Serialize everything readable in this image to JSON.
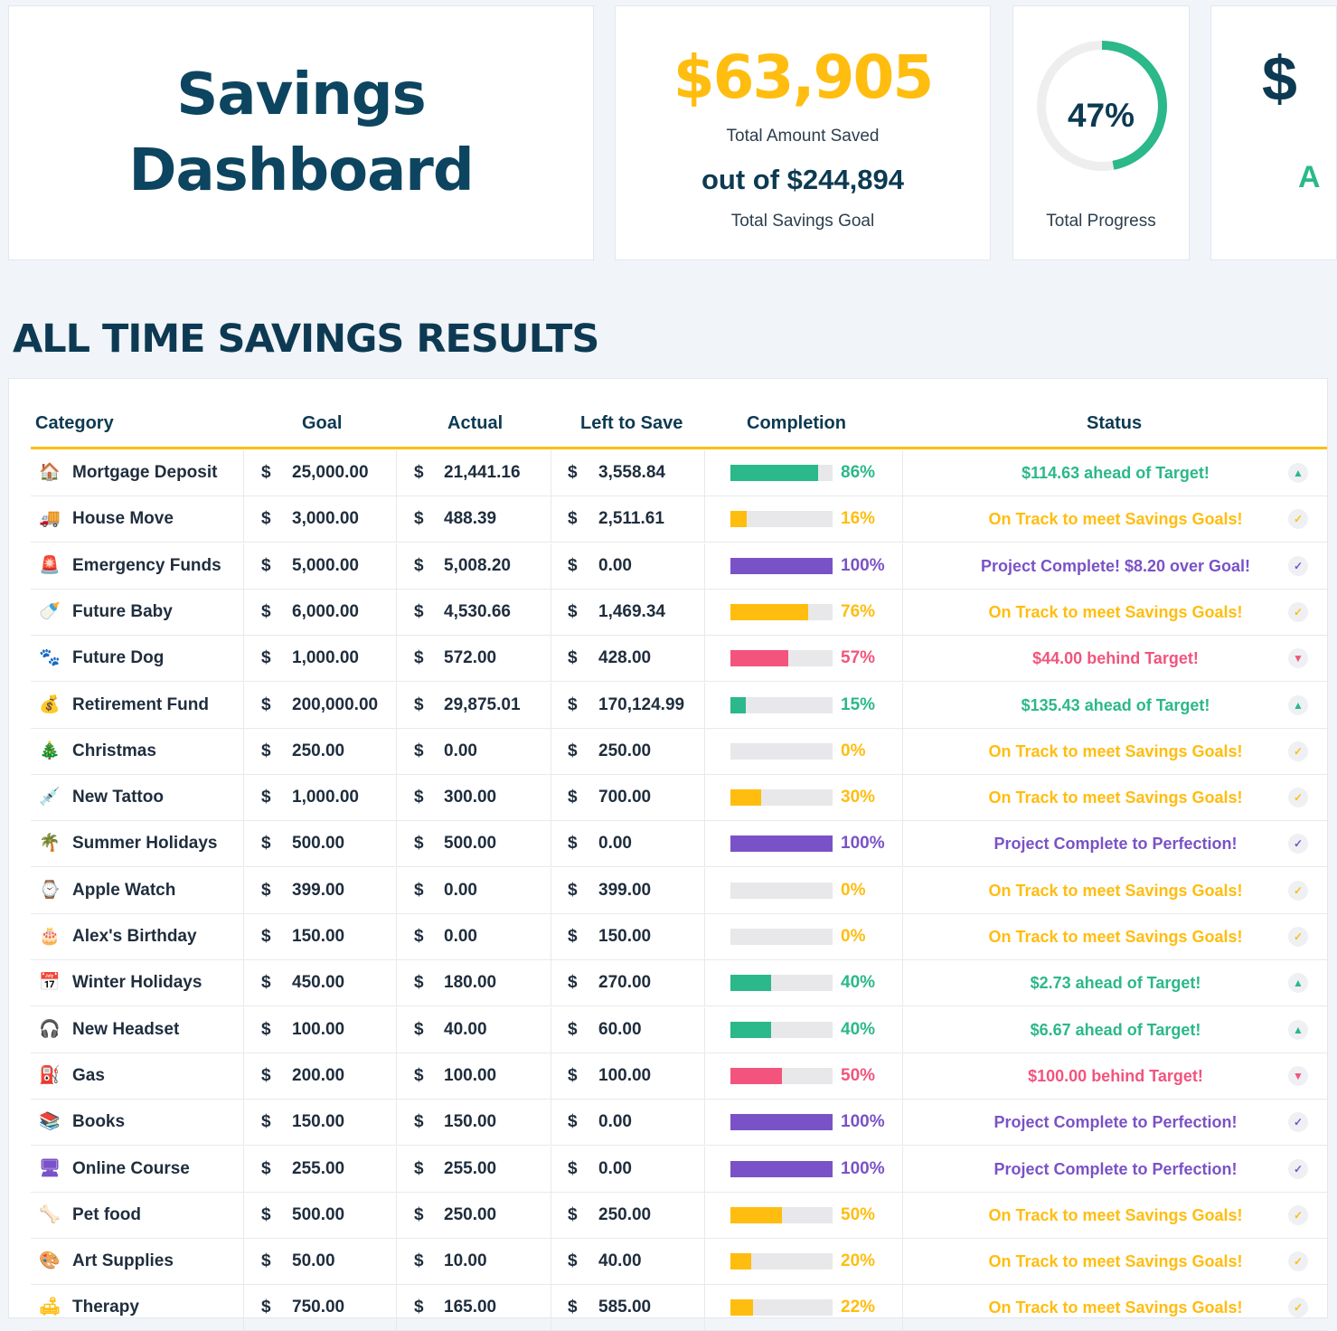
{
  "header": {
    "title_line1": "Savings",
    "title_line2": "Dashboard",
    "total_saved": "$63,905",
    "total_saved_label": "Total Amount Saved",
    "goal": "out of $244,894",
    "goal_label": "Total Savings Goal",
    "progress_pct": "47%",
    "progress_value": 0.47,
    "progress_label": "Total Progress",
    "partial_card_value": "$",
    "partial_card_label": "A"
  },
  "section_title": "ALL TIME SAVINGS RESULTS",
  "columns": {
    "category": "Category",
    "goal": "Goal",
    "actual": "Actual",
    "left": "Left to Save",
    "completion": "Completion",
    "status": "Status"
  },
  "colors": {
    "ahead": "#2bb88a",
    "ontrack": "#ffbd0f",
    "complete": "#7a52c7",
    "behind": "#f2547d",
    "accent": "#ffbd0f",
    "navy": "#0d3a52"
  },
  "rows": [
    {
      "icon": "house-icon",
      "glyph": "🏠",
      "category": "Mortgage Deposit",
      "currency": "$",
      "goal": "25,000.00",
      "actual": "21,441.16",
      "left": "3,558.84",
      "pct_text": "86%",
      "pct": 0.86,
      "status": "$114.63 ahead of Target!",
      "kind": "ahead"
    },
    {
      "icon": "truck-icon",
      "glyph": "🚚",
      "category": "House Move",
      "currency": "$",
      "goal": "3,000.00",
      "actual": "488.39",
      "left": "2,511.61",
      "pct_text": "16%",
      "pct": 0.16,
      "status": "On Track to meet Savings Goals!",
      "kind": "ontrack"
    },
    {
      "icon": "siren-icon",
      "glyph": "🚨",
      "category": "Emergency Funds",
      "currency": "$",
      "goal": "5,000.00",
      "actual": "5,008.20",
      "left": "0.00",
      "pct_text": "100%",
      "pct": 1.0,
      "status": "Project Complete! $8.20 over Goal!",
      "kind": "complete"
    },
    {
      "icon": "baby-bottle-icon",
      "glyph": "🍼",
      "category": "Future Baby",
      "currency": "$",
      "goal": "6,000.00",
      "actual": "4,530.66",
      "left": "1,469.34",
      "pct_text": "76%",
      "pct": 0.76,
      "status": "On Track to meet Savings Goals!",
      "kind": "ontrack"
    },
    {
      "icon": "paw-icon",
      "glyph": "🐾",
      "category": "Future Dog",
      "currency": "$",
      "goal": "1,000.00",
      "actual": "572.00",
      "left": "428.00",
      "pct_text": "57%",
      "pct": 0.57,
      "status": "$44.00 behind Target!",
      "kind": "behind"
    },
    {
      "icon": "money-bag-icon",
      "glyph": "💰",
      "category": "Retirement Fund",
      "currency": "$",
      "goal": "200,000.00",
      "actual": "29,875.01",
      "left": "170,124.99",
      "pct_text": "15%",
      "pct": 0.15,
      "status": "$135.43 ahead of Target!",
      "kind": "ahead"
    },
    {
      "icon": "christmas-tree-icon",
      "glyph": "🎄",
      "category": "Christmas",
      "currency": "$",
      "goal": "250.00",
      "actual": "0.00",
      "left": "250.00",
      "pct_text": "0%",
      "pct": 0.0,
      "status": "On Track to meet Savings Goals!",
      "kind": "ontrack"
    },
    {
      "icon": "tattoo-needle-icon",
      "glyph": "💉",
      "category": "New Tattoo",
      "currency": "$",
      "goal": "1,000.00",
      "actual": "300.00",
      "left": "700.00",
      "pct_text": "30%",
      "pct": 0.3,
      "status": "On Track to meet Savings Goals!",
      "kind": "ontrack"
    },
    {
      "icon": "palm-tree-icon",
      "glyph": "🌴",
      "category": "Summer Holidays",
      "currency": "$",
      "goal": "500.00",
      "actual": "500.00",
      "left": "0.00",
      "pct_text": "100%",
      "pct": 1.0,
      "status": "Project Complete to Perfection!",
      "kind": "complete"
    },
    {
      "icon": "watch-icon",
      "glyph": "⌚",
      "category": "Apple Watch",
      "currency": "$",
      "goal": "399.00",
      "actual": "0.00",
      "left": "399.00",
      "pct_text": "0%",
      "pct": 0.0,
      "status": "On Track to meet Savings Goals!",
      "kind": "ontrack"
    },
    {
      "icon": "birthday-cake-icon",
      "glyph": "🎂",
      "category": "Alex's Birthday",
      "currency": "$",
      "goal": "150.00",
      "actual": "0.00",
      "left": "150.00",
      "pct_text": "0%",
      "pct": 0.0,
      "status": "On Track to meet Savings Goals!",
      "kind": "ontrack"
    },
    {
      "icon": "calendar-snow-icon",
      "glyph": "📅",
      "category": "Winter Holidays",
      "currency": "$",
      "goal": "450.00",
      "actual": "180.00",
      "left": "270.00",
      "pct_text": "40%",
      "pct": 0.4,
      "status": "$2.73 ahead of Target!",
      "kind": "ahead"
    },
    {
      "icon": "headphones-icon",
      "glyph": "🎧",
      "category": "New Headset",
      "currency": "$",
      "goal": "100.00",
      "actual": "40.00",
      "left": "60.00",
      "pct_text": "40%",
      "pct": 0.4,
      "status": "$6.67 ahead of Target!",
      "kind": "ahead"
    },
    {
      "icon": "fuel-pump-icon",
      "glyph": "⛽",
      "category": "Gas",
      "currency": "$",
      "goal": "200.00",
      "actual": "100.00",
      "left": "100.00",
      "pct_text": "50%",
      "pct": 0.5,
      "status": "$100.00 behind Target!",
      "kind": "behind"
    },
    {
      "icon": "books-icon",
      "glyph": "📚",
      "category": "Books",
      "currency": "$",
      "goal": "150.00",
      "actual": "150.00",
      "left": "0.00",
      "pct_text": "100%",
      "pct": 1.0,
      "status": "Project Complete to Perfection!",
      "kind": "complete"
    },
    {
      "icon": "monitor-icon",
      "glyph": "🖥",
      "category": "Online Course",
      "currency": "$",
      "goal": "255.00",
      "actual": "255.00",
      "left": "0.00",
      "pct_text": "100%",
      "pct": 1.0,
      "status": "Project Complete to Perfection!",
      "kind": "complete"
    },
    {
      "icon": "pet-food-icon",
      "glyph": "🦴",
      "category": "Pet food",
      "currency": "$",
      "goal": "500.00",
      "actual": "250.00",
      "left": "250.00",
      "pct_text": "50%",
      "pct": 0.5,
      "status": "On Track to meet Savings Goals!",
      "kind": "ontrack"
    },
    {
      "icon": "easel-icon",
      "glyph": "🎨",
      "category": "Art Supplies",
      "currency": "$",
      "goal": "50.00",
      "actual": "10.00",
      "left": "40.00",
      "pct_text": "20%",
      "pct": 0.2,
      "status": "On Track to meet Savings Goals!",
      "kind": "ontrack"
    },
    {
      "icon": "therapy-icon",
      "glyph": "🛋",
      "category": "Therapy",
      "currency": "$",
      "goal": "750.00",
      "actual": "165.00",
      "left": "585.00",
      "pct_text": "22%",
      "pct": 0.22,
      "status": "On Track to meet Savings Goals!",
      "kind": "ontrack"
    }
  ]
}
